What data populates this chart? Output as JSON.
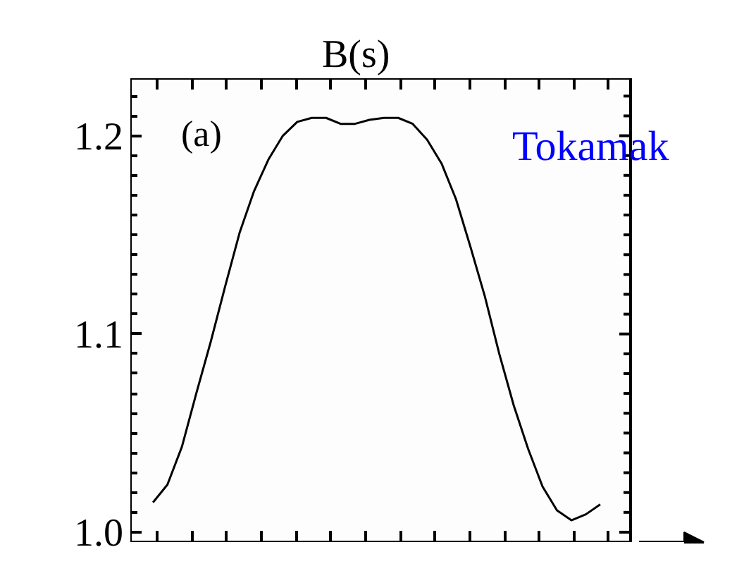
{
  "chart_data": {
    "type": "line",
    "title": "B(s)",
    "categories": [
      null,
      null,
      null,
      null,
      null,
      null,
      null,
      null,
      null,
      null,
      null,
      null,
      null,
      null,
      null,
      null,
      null,
      null,
      null,
      null,
      null,
      null,
      null,
      null,
      null,
      null,
      null,
      null,
      null,
      null,
      null,
      null
    ],
    "series": [
      {
        "color": "#000000",
        "values": [
          1.015,
          1.024,
          1.043,
          1.07,
          1.096,
          1.124,
          1.151,
          1.172,
          1.188,
          1.2,
          1.207,
          1.209,
          1.209,
          1.206,
          1.206,
          1.208,
          1.209,
          1.209,
          1.206,
          1.198,
          1.186,
          1.168,
          1.144,
          1.119,
          1.09,
          1.064,
          1.042,
          1.023,
          1.011,
          1.006,
          1.009,
          1.014
        ]
      }
    ],
    "ylim": [
      0.995,
      1.229
    ],
    "yticks": [
      {
        "value": 1.0,
        "label": "1.0"
      },
      {
        "value": 1.1,
        "label": "1.1"
      },
      {
        "value": 1.2,
        "label": "1.2"
      }
    ],
    "annotations": [
      "(a)",
      "Tokamak"
    ],
    "tick_labels": "y",
    "grid": false
  }
}
